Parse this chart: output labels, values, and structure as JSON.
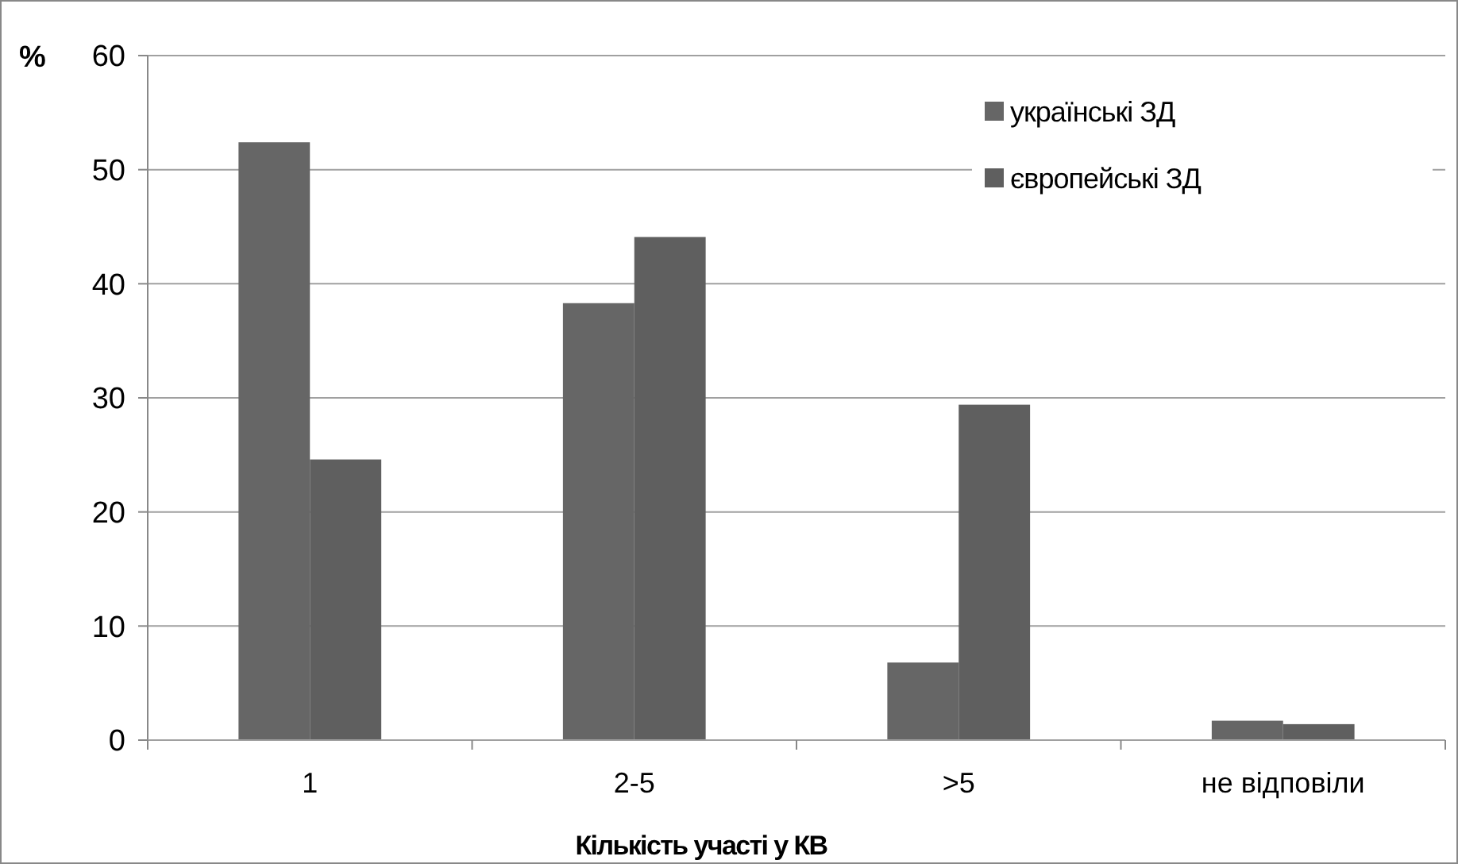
{
  "chart_data": {
    "type": "bar",
    "xlabel": "Кількість участі у КВ",
    "ylabel": "%",
    "categories": [
      "1",
      "2-5",
      ">5",
      "не відповіли"
    ],
    "series": [
      {
        "name": "українські ЗД",
        "color": "#666666",
        "values": [
          52.4,
          38.3,
          6.8,
          1.7
        ]
      },
      {
        "name": "європейські ЗД",
        "color": "#5f5f5f",
        "values": [
          24.6,
          44.1,
          29.4,
          1.4
        ]
      }
    ],
    "ylim": [
      0,
      60
    ],
    "yticks": [
      0,
      10,
      20,
      30,
      40,
      50,
      60
    ],
    "grid": "y",
    "legend": "top right"
  }
}
